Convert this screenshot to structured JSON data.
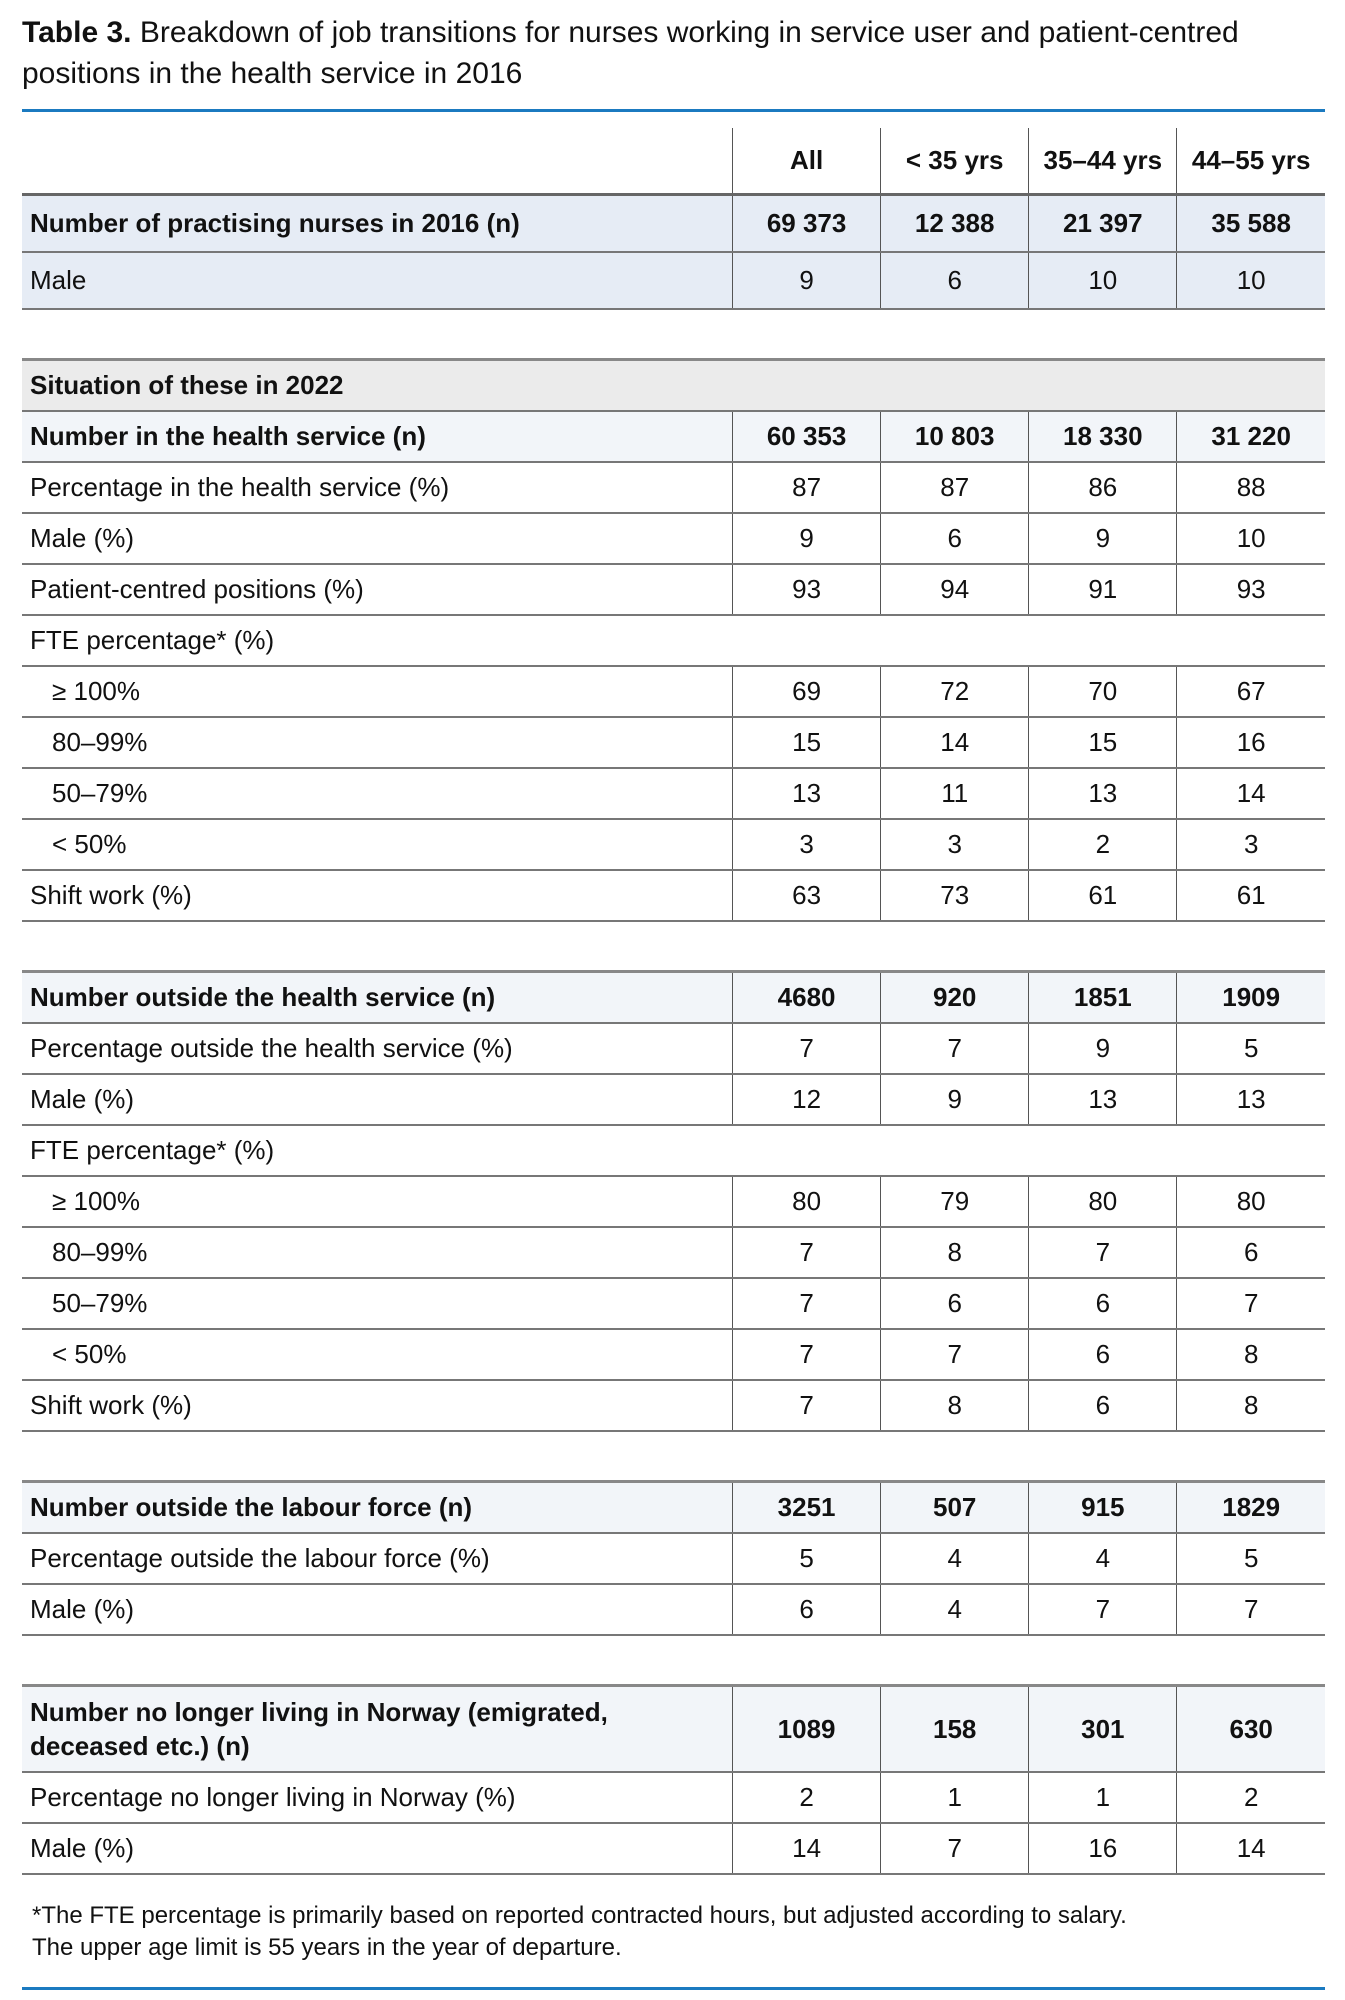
{
  "title": {
    "label": "Table 3.",
    "text": " Breakdown of job transitions for nurses working in service user and patient-centred positions in the health service in 2016"
  },
  "columns": [
    "All",
    "< 35 yrs",
    "35–44 yrs",
    "44–55 yrs"
  ],
  "section1": [
    {
      "label": "Number of practising nurses in 2016 (n)",
      "values": [
        "69 373",
        "12 388",
        "21 397",
        "35 588"
      ]
    },
    {
      "label": "Male",
      "values": [
        "9",
        "6",
        "10",
        "10"
      ]
    }
  ],
  "situation_label": "Situation of these in 2022",
  "section2": [
    {
      "label": "Number in the health service (n)",
      "values": [
        "60 353",
        "10 803",
        "18 330",
        "31 220"
      ]
    },
    {
      "label": "Percentage in the health service (%)",
      "values": [
        "87",
        "87",
        "86",
        "88"
      ]
    },
    {
      "label": "Male (%)",
      "values": [
        "9",
        "6",
        "9",
        "10"
      ]
    },
    {
      "label": "Patient-centred positions (%)",
      "values": [
        "93",
        "94",
        "91",
        "93"
      ]
    },
    {
      "label": "FTE percentage* (%)",
      "values": []
    },
    {
      "label": "≥ 100%",
      "values": [
        "69",
        "72",
        "70",
        "67"
      ]
    },
    {
      "label": "80–99%",
      "values": [
        "15",
        "14",
        "15",
        "16"
      ]
    },
    {
      "label": "50–79%",
      "values": [
        "13",
        "11",
        "13",
        "14"
      ]
    },
    {
      "label": "< 50%",
      "values": [
        "3",
        "3",
        "2",
        "3"
      ]
    },
    {
      "label": "Shift work (%)",
      "values": [
        "63",
        "73",
        "61",
        "61"
      ]
    }
  ],
  "section3": [
    {
      "label": "Number outside the health service (n)",
      "values": [
        "4680",
        "920",
        "1851",
        "1909"
      ]
    },
    {
      "label": "Percentage outside the health service (%)",
      "values": [
        "7",
        "7",
        "9",
        "5"
      ]
    },
    {
      "label": "Male (%)",
      "values": [
        "12",
        "9",
        "13",
        "13"
      ]
    },
    {
      "label": "FTE percentage* (%)",
      "values": []
    },
    {
      "label": "≥ 100%",
      "values": [
        "80",
        "79",
        "80",
        "80"
      ]
    },
    {
      "label": "80–99%",
      "values": [
        "7",
        "8",
        "7",
        "6"
      ]
    },
    {
      "label": "50–79%",
      "values": [
        "7",
        "6",
        "6",
        "7"
      ]
    },
    {
      "label": "< 50%",
      "values": [
        "7",
        "7",
        "6",
        "8"
      ]
    },
    {
      "label": "Shift work (%)",
      "values": [
        "7",
        "8",
        "6",
        "8"
      ]
    }
  ],
  "section4": [
    {
      "label": "Number outside the labour force (n)",
      "values": [
        "3251",
        "507",
        "915",
        "1829"
      ]
    },
    {
      "label": "Percentage outside the labour force (%)",
      "values": [
        "5",
        "4",
        "4",
        "5"
      ]
    },
    {
      "label": "Male (%)",
      "values": [
        "6",
        "4",
        "7",
        "7"
      ]
    }
  ],
  "section5": [
    {
      "label": "Number no longer living in Norway (emigrated, deceased etc.) (n)",
      "values": [
        "1089",
        "158",
        "301",
        "630"
      ]
    },
    {
      "label": "Percentage no longer living in Norway (%)",
      "values": [
        "2",
        "1",
        "1",
        "2"
      ]
    },
    {
      "label": "Male (%)",
      "values": [
        "14",
        "7",
        "16",
        "14"
      ]
    }
  ],
  "footnote": [
    "*The FTE percentage is primarily based on reported contracted hours, but adjusted according to salary.",
    "The upper age limit is 55 years in the year of departure."
  ],
  "colors": {
    "accent": "#1b7ac0",
    "row_blue": "#e6ecf5",
    "row_light": "#f2f5f9",
    "row_gray": "#ebebeb"
  }
}
